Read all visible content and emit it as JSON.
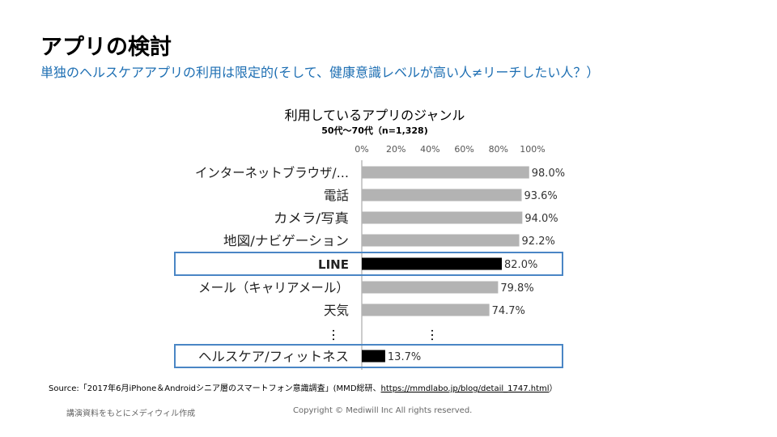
{
  "slide": {
    "title": "アプリの検討",
    "subtitle": "単独のヘルスケアアプリの利用は限定的(そして、健康意識レベルが高い人≠リーチしたい人？）"
  },
  "chart_data": {
    "type": "bar",
    "orientation": "horizontal",
    "title": "利用しているアプリのジャンル",
    "subtitle": "50代～70代（n=1,328)",
    "categories": [
      "インターネットブラウザ/…",
      "電話",
      "カメラ/写真",
      "地図/ナビゲーション",
      "LINE",
      "メール（キャリアメール）",
      "天気",
      "ヘルスケア/フィットネス"
    ],
    "values": [
      98.0,
      93.6,
      94.0,
      92.2,
      82.0,
      79.8,
      74.7,
      13.7
    ],
    "value_labels": [
      "98.0%",
      "93.6%",
      "94.0%",
      "92.2%",
      "82.0%",
      "79.8%",
      "74.7%",
      "13.7%"
    ],
    "highlighted": [
      false,
      false,
      false,
      false,
      true,
      false,
      false,
      true
    ],
    "xlim": [
      0,
      100
    ],
    "x_ticks": [
      0,
      20,
      40,
      60,
      80,
      100
    ],
    "x_tick_labels": [
      "0%",
      "20%",
      "40%",
      "60%",
      "80%",
      "100%"
    ],
    "ellipsis": "…",
    "colors": {
      "bar": "#b3b3b3",
      "highlight_bar": "#000000",
      "highlight_box": "#4a86c5",
      "axis": "#999999"
    }
  },
  "source": {
    "prefix": "Source:「",
    "title": "2017年6月iPhone＆Androidシニア層のスマートフォン意識調査",
    "middle": "」(MMD総研、",
    "url": "https://mmdlabo.jp/blog/detail_1747.html",
    "suffix": "）"
  },
  "footer": {
    "left": "講演資料をもとにメディウィル作成",
    "center": "Copyright © Mediwill Inc All rights reserved."
  }
}
